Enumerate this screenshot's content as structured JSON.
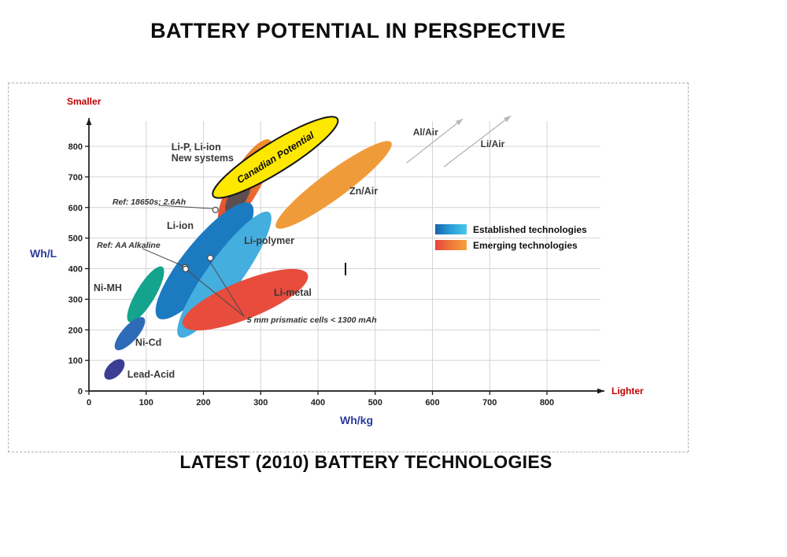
{
  "page": {
    "title": "BATTERY POTENTIAL IN PERSPECTIVE",
    "caption": "LATEST (2010) BATTERY TECHNOLOGIES"
  },
  "chart_data": {
    "type": "scatter",
    "title": "BATTERY POTENTIAL IN PERSPECTIVE",
    "subtitle": "LATEST (2010) BATTERY TECHNOLOGIES",
    "xlabel": "Wh/kg",
    "ylabel": "Wh/L",
    "x_axis_arrow_label": "Lighter",
    "y_axis_arrow_label": "Smaller",
    "xlim": [
      0,
      900
    ],
    "ylim": [
      0,
      900
    ],
    "x_ticks": [
      0,
      100,
      200,
      300,
      400,
      500,
      600,
      700,
      800
    ],
    "y_ticks": [
      0,
      100,
      200,
      300,
      400,
      500,
      600,
      700,
      800
    ],
    "grid": true,
    "legend_position": "middle-right",
    "axis_label_color": "#2b3a9a",
    "arrow_label_color": "#c00000",
    "legend": {
      "items": [
        {
          "label": "Established technologies",
          "colors": [
            "#1565ae",
            "#2d9fd8",
            "#49c8ea"
          ]
        },
        {
          "label": "Emerging technologies",
          "colors": [
            "#e6443c",
            "#ef7a38",
            "#f5a03c"
          ]
        }
      ]
    },
    "regions": [
      {
        "name": "Zn/Air",
        "group": "emerging",
        "axis": [
          [
            327,
            535
          ],
          [
            528,
            813
          ]
        ],
        "half_width": 17,
        "fill": "#f09b3a",
        "label": {
          "text": "Zn/Air",
          "x": 455,
          "y": 643
        }
      },
      {
        "name": "Li-P Li-ion New systems",
        "group": "emerging",
        "axis": [
          [
            231,
            538
          ],
          [
            316,
            821
          ]
        ],
        "half_width": 19,
        "fill": [
          "#e14a31",
          "#f0922f"
        ],
        "label": {
          "lines": [
            "Li-P, Li-ion",
            "New systems"
          ],
          "x": 144,
          "y": 787
        }
      },
      {
        "name": "Ref 18650 cluster",
        "group": "established",
        "axis": [
          [
            242,
            579
          ],
          [
            279,
            692
          ]
        ],
        "half_width": 11,
        "fill": "#4d4d55",
        "opacity": 0.9
      },
      {
        "name": "Li-ion",
        "group": "established",
        "axis": [
          [
            121,
            239
          ],
          [
            283,
            612
          ]
        ],
        "half_width": 26,
        "fill": "#1c7ac1",
        "label": {
          "text": "Li-ion",
          "x": 136,
          "y": 530
        }
      },
      {
        "name": "Li-polymer",
        "group": "established",
        "axis": [
          [
            158,
            177
          ],
          [
            315,
            584
          ]
        ],
        "half_width": 22,
        "fill": "#44aede",
        "label": {
          "text": "Li-polymer",
          "x": 271,
          "y": 481
        }
      },
      {
        "name": "Li-metal",
        "group": "emerging",
        "axis": [
          [
            164,
            216
          ],
          [
            382,
            381
          ]
        ],
        "half_width": 24,
        "fill": "#e84c3d",
        "label": {
          "text": "Li-metal",
          "x": 323,
          "y": 311
        }
      },
      {
        "name": "Ni-MH",
        "group": "established",
        "axis": [
          [
            70,
            226
          ],
          [
            128,
            406
          ]
        ],
        "half_width": 12,
        "fill": "#14a38c",
        "label": {
          "text": "Ni-MH",
          "x": 8,
          "y": 327
        }
      },
      {
        "name": "Ni-Cd",
        "group": "established",
        "axis": [
          [
            47,
            136
          ],
          [
            96,
            239
          ]
        ],
        "half_width": 10,
        "fill": "#2e6cb8",
        "label": {
          "text": "Ni-Cd",
          "x": 81,
          "y": 148
        }
      },
      {
        "name": "Lead-Acid",
        "group": "established",
        "axis": [
          [
            29,
            41
          ],
          [
            60,
            100
          ]
        ],
        "half_width": 9,
        "fill": "#3b3e92",
        "label": {
          "text": "Lead-Acid",
          "x": 67,
          "y": 44
        }
      },
      {
        "name": "Canadian Potential",
        "group": "potential",
        "axis": [
          [
            217,
            638
          ],
          [
            434,
            890
          ]
        ],
        "half_width": 19,
        "fill": "#ffe800",
        "stroke": "#151515",
        "stroke_width": 2,
        "axis_label": "Canadian Potential"
      }
    ],
    "arrows": [
      {
        "name": "Al/Air",
        "from": [
          555,
          746
        ],
        "to": [
          653,
          890
        ],
        "label": {
          "text": "Al/Air",
          "x": 566,
          "y": 836
        }
      },
      {
        "name": "Li/Air",
        "from": [
          620,
          733
        ],
        "to": [
          737,
          900
        ],
        "label": {
          "text": "Li/Air",
          "x": 684,
          "y": 798
        }
      }
    ],
    "annotations": [
      {
        "text": "Ref: 18650s; 2.6Ah",
        "x": 41,
        "y": 610,
        "leaders": [
          [
            [
              122,
              607
            ],
            [
              218,
              596
            ]
          ]
        ],
        "markers": [
          [
            221,
            592
          ]
        ]
      },
      {
        "text": "Ref: AA Alkaline",
        "x": 14,
        "y": 468,
        "leaders": [
          [
            [
              93,
              466
            ],
            [
              164,
              409
            ]
          ]
        ],
        "markers": [
          [
            168,
            404
          ]
        ]
      },
      {
        "text": "5 mm prismatic cells < 1300 mAh",
        "x": 276,
        "y": 224,
        "leaders": [
          [
            [
              271,
              244
            ],
            [
              172,
              394
            ]
          ],
          [
            [
              271,
              244
            ],
            [
              209,
              430
            ]
          ]
        ],
        "markers": [
          [
            169,
            399
          ],
          [
            212,
            435
          ]
        ]
      }
    ]
  }
}
